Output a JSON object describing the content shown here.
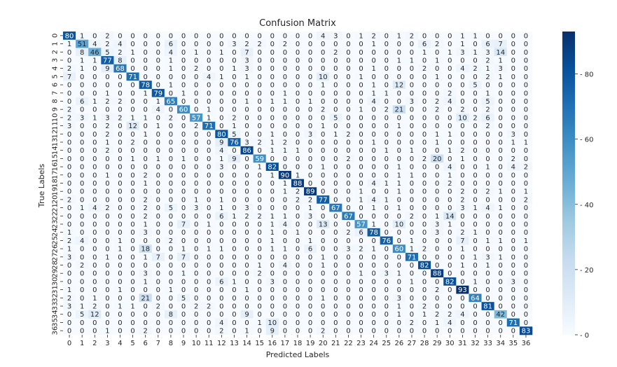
{
  "chart_data": {
    "type": "heatmap",
    "title": "Confusion Matrix",
    "xlabel": "Predicted Labels",
    "ylabel": "True Labels",
    "x_tick_labels": [
      "0",
      "1",
      "2",
      "3",
      "4",
      "5",
      "6",
      "7",
      "8",
      "9",
      "10",
      "11",
      "12",
      "13",
      "14",
      "15",
      "16",
      "17",
      "18",
      "19",
      "20",
      "21",
      "22",
      "23",
      "24",
      "25",
      "26",
      "27",
      "28",
      "29",
      "30",
      "31",
      "32",
      "33",
      "34",
      "35",
      "36"
    ],
    "y_tick_labels": [
      "0",
      "1",
      "2",
      "3",
      "4",
      "5",
      "6",
      "7",
      "8",
      "9",
      "10",
      "11",
      "12",
      "13",
      "14",
      "15",
      "16",
      "17",
      "18",
      "19",
      "20",
      "21",
      "22",
      "23",
      "24",
      "25",
      "26",
      "27",
      "28",
      "29",
      "30",
      "31",
      "32",
      "33",
      "34",
      "35",
      "36"
    ],
    "colorscale": "Blues",
    "vmin": 0,
    "vmax": 93,
    "colorbar_ticks": [
      0,
      20,
      40,
      60,
      80
    ],
    "colors": {
      "low": "#f7fbff",
      "high": "#08306b",
      "text_dark": "#262626",
      "text_light": "#ffffff"
    },
    "matrix": [
      [
        80,
        1,
        0,
        2,
        0,
        0,
        0,
        0,
        0,
        0,
        0,
        0,
        0,
        0,
        0,
        0,
        0,
        0,
        0,
        0,
        4,
        3,
        0,
        1,
        2,
        0,
        1,
        2,
        0,
        0,
        0,
        1,
        1,
        0,
        0,
        0,
        0
      ],
      [
        1,
        51,
        4,
        2,
        4,
        0,
        0,
        0,
        6,
        0,
        0,
        0,
        0,
        3,
        2,
        2,
        0,
        2,
        0,
        0,
        0,
        0,
        0,
        0,
        1,
        0,
        0,
        0,
        6,
        2,
        0,
        1,
        0,
        6,
        7,
        0,
        0
      ],
      [
        0,
        8,
        46,
        5,
        2,
        1,
        0,
        0,
        4,
        0,
        1,
        0,
        1,
        0,
        7,
        0,
        0,
        0,
        0,
        0,
        0,
        2,
        0,
        0,
        0,
        0,
        0,
        0,
        1,
        0,
        1,
        3,
        1,
        3,
        14,
        0,
        0
      ],
      [
        0,
        1,
        1,
        77,
        8,
        0,
        0,
        0,
        1,
        0,
        0,
        0,
        0,
        0,
        3,
        0,
        0,
        0,
        0,
        0,
        0,
        0,
        0,
        0,
        0,
        0,
        1,
        1,
        0,
        1,
        0,
        0,
        0,
        2,
        1,
        0,
        0
      ],
      [
        2,
        1,
        0,
        9,
        68,
        0,
        0,
        0,
        1,
        0,
        2,
        0,
        0,
        1,
        3,
        0,
        0,
        0,
        0,
        0,
        0,
        0,
        0,
        0,
        1,
        0,
        0,
        0,
        2,
        0,
        0,
        4,
        2,
        1,
        3,
        0,
        0
      ],
      [
        7,
        0,
        0,
        0,
        0,
        71,
        0,
        0,
        0,
        0,
        0,
        4,
        1,
        0,
        1,
        0,
        0,
        0,
        0,
        0,
        10,
        0,
        0,
        1,
        0,
        0,
        0,
        0,
        0,
        1,
        0,
        0,
        0,
        2,
        1,
        0,
        0
      ],
      [
        0,
        0,
        0,
        0,
        0,
        0,
        78,
        0,
        1,
        0,
        0,
        0,
        0,
        0,
        0,
        0,
        0,
        0,
        0,
        0,
        1,
        0,
        0,
        0,
        1,
        0,
        12,
        0,
        0,
        0,
        0,
        0,
        5,
        0,
        0,
        0,
        0
      ],
      [
        0,
        0,
        0,
        1,
        0,
        0,
        1,
        79,
        0,
        1,
        0,
        0,
        0,
        0,
        0,
        0,
        0,
        1,
        0,
        0,
        0,
        0,
        0,
        0,
        1,
        1,
        0,
        0,
        0,
        0,
        2,
        0,
        0,
        1,
        0,
        0,
        0
      ],
      [
        0,
        6,
        1,
        2,
        2,
        0,
        0,
        1,
        65,
        0,
        0,
        0,
        0,
        0,
        1,
        0,
        1,
        1,
        0,
        1,
        0,
        0,
        0,
        0,
        4,
        0,
        0,
        3,
        0,
        2,
        4,
        0,
        0,
        5,
        0,
        0,
        0
      ],
      [
        2,
        0,
        0,
        0,
        0,
        0,
        0,
        4,
        0,
        60,
        0,
        1,
        0,
        0,
        0,
        0,
        0,
        0,
        0,
        0,
        2,
        0,
        0,
        1,
        0,
        2,
        21,
        0,
        0,
        2,
        0,
        2,
        0,
        2,
        0,
        0,
        0
      ],
      [
        2,
        3,
        1,
        3,
        2,
        1,
        1,
        0,
        2,
        0,
        57,
        1,
        0,
        2,
        0,
        0,
        0,
        0,
        0,
        0,
        0,
        5,
        0,
        0,
        0,
        0,
        0,
        0,
        0,
        0,
        0,
        10,
        2,
        6,
        0,
        0,
        0
      ],
      [
        3,
        0,
        0,
        2,
        0,
        12,
        0,
        1,
        0,
        0,
        2,
        71,
        0,
        1,
        0,
        0,
        0,
        0,
        0,
        0,
        1,
        0,
        0,
        0,
        0,
        0,
        1,
        0,
        0,
        0,
        0,
        0,
        0,
        2,
        0,
        0,
        0
      ],
      [
        0,
        0,
        0,
        2,
        0,
        0,
        1,
        0,
        0,
        0,
        0,
        0,
        80,
        5,
        0,
        0,
        1,
        0,
        0,
        3,
        0,
        1,
        2,
        0,
        0,
        0,
        0,
        0,
        0,
        1,
        1,
        0,
        0,
        0,
        0,
        3,
        0
      ],
      [
        0,
        0,
        0,
        1,
        0,
        2,
        0,
        0,
        0,
        0,
        0,
        0,
        9,
        76,
        3,
        2,
        1,
        2,
        0,
        0,
        0,
        0,
        0,
        0,
        1,
        0,
        0,
        0,
        0,
        1,
        0,
        0,
        0,
        0,
        0,
        1,
        1
      ],
      [
        0,
        0,
        0,
        2,
        0,
        0,
        0,
        0,
        0,
        0,
        0,
        0,
        4,
        0,
        86,
        0,
        1,
        1,
        1,
        0,
        0,
        0,
        0,
        0,
        0,
        1,
        0,
        1,
        0,
        0,
        1,
        2,
        0,
        0,
        0,
        0,
        0
      ],
      [
        0,
        0,
        0,
        0,
        0,
        1,
        0,
        1,
        0,
        1,
        0,
        0,
        1,
        9,
        0,
        59,
        0,
        0,
        0,
        0,
        0,
        0,
        2,
        0,
        0,
        0,
        0,
        0,
        2,
        20,
        0,
        1,
        0,
        0,
        0,
        2,
        0
      ],
      [
        0,
        0,
        0,
        0,
        0,
        0,
        0,
        0,
        0,
        0,
        0,
        0,
        3,
        0,
        0,
        1,
        82,
        0,
        0,
        0,
        1,
        0,
        0,
        0,
        0,
        0,
        1,
        0,
        0,
        0,
        4,
        0,
        0,
        1,
        0,
        4,
        2
      ],
      [
        0,
        0,
        0,
        1,
        0,
        0,
        2,
        0,
        0,
        0,
        0,
        0,
        0,
        0,
        0,
        0,
        1,
        90,
        1,
        0,
        0,
        0,
        0,
        0,
        0,
        0,
        1,
        1,
        0,
        0,
        1,
        0,
        0,
        0,
        0,
        0,
        0
      ],
      [
        0,
        0,
        0,
        0,
        0,
        0,
        1,
        0,
        0,
        0,
        0,
        0,
        0,
        0,
        0,
        0,
        0,
        1,
        88,
        0,
        0,
        0,
        0,
        0,
        4,
        1,
        1,
        0,
        0,
        0,
        2,
        0,
        0,
        0,
        0,
        0,
        0
      ],
      [
        0,
        0,
        0,
        0,
        0,
        0,
        0,
        0,
        0,
        0,
        0,
        0,
        0,
        0,
        0,
        0,
        0,
        1,
        2,
        89,
        0,
        0,
        0,
        1,
        0,
        0,
        1,
        0,
        0,
        0,
        0,
        2,
        0,
        2,
        1,
        0,
        1
      ],
      [
        2,
        0,
        0,
        0,
        0,
        0,
        2,
        0,
        0,
        0,
        1,
        0,
        1,
        0,
        0,
        0,
        0,
        0,
        2,
        2,
        77,
        0,
        0,
        1,
        4,
        1,
        0,
        0,
        0,
        0,
        0,
        2,
        0,
        0,
        0,
        0,
        2
      ],
      [
        0,
        1,
        4,
        2,
        0,
        0,
        2,
        0,
        5,
        0,
        3,
        0,
        1,
        0,
        3,
        0,
        0,
        0,
        0,
        1,
        0,
        67,
        0,
        0,
        1,
        0,
        1,
        0,
        0,
        0,
        0,
        3,
        1,
        4,
        1,
        0,
        0
      ],
      [
        0,
        0,
        0,
        0,
        0,
        0,
        2,
        0,
        0,
        0,
        0,
        0,
        6,
        1,
        2,
        2,
        1,
        1,
        0,
        3,
        0,
        0,
        67,
        0,
        0,
        0,
        0,
        2,
        0,
        1,
        14,
        0,
        0,
        0,
        0,
        0,
        0
      ],
      [
        0,
        0,
        0,
        0,
        0,
        0,
        1,
        0,
        0,
        7,
        0,
        1,
        0,
        0,
        0,
        0,
        1,
        4,
        0,
        0,
        13,
        0,
        0,
        57,
        1,
        0,
        10,
        0,
        0,
        3,
        1,
        0,
        0,
        0,
        0,
        0,
        0
      ],
      [
        1,
        0,
        0,
        0,
        0,
        0,
        3,
        0,
        0,
        0,
        0,
        0,
        0,
        0,
        0,
        0,
        1,
        0,
        1,
        0,
        0,
        0,
        2,
        6,
        78,
        0,
        0,
        0,
        0,
        3,
        0,
        2,
        1,
        0,
        0,
        0,
        0
      ],
      [
        2,
        4,
        0,
        0,
        1,
        0,
        0,
        0,
        2,
        0,
        0,
        0,
        0,
        0,
        0,
        0,
        1,
        0,
        0,
        1,
        0,
        0,
        0,
        0,
        0,
        76,
        0,
        1,
        0,
        0,
        0,
        7,
        0,
        1,
        1,
        0,
        1
      ],
      [
        1,
        0,
        0,
        0,
        1,
        0,
        18,
        0,
        0,
        1,
        0,
        1,
        1,
        0,
        0,
        0,
        1,
        1,
        0,
        6,
        0,
        0,
        3,
        2,
        1,
        0,
        60,
        1,
        2,
        0,
        0,
        1,
        0,
        0,
        0,
        0,
        0
      ],
      [
        3,
        0,
        0,
        1,
        0,
        0,
        1,
        7,
        0,
        7,
        0,
        0,
        0,
        0,
        0,
        0,
        0,
        0,
        0,
        0,
        1,
        0,
        0,
        0,
        0,
        0,
        0,
        71,
        0,
        0,
        0,
        0,
        1,
        3,
        1,
        0,
        0
      ],
      [
        0,
        2,
        0,
        0,
        0,
        0,
        0,
        0,
        0,
        0,
        0,
        0,
        0,
        0,
        0,
        1,
        0,
        4,
        0,
        0,
        1,
        0,
        0,
        0,
        0,
        0,
        0,
        0,
        82,
        0,
        0,
        1,
        0,
        1,
        0,
        0,
        0
      ],
      [
        0,
        0,
        0,
        0,
        0,
        0,
        3,
        0,
        0,
        1,
        0,
        0,
        0,
        0,
        0,
        2,
        0,
        0,
        0,
        0,
        0,
        0,
        0,
        1,
        0,
        3,
        1,
        0,
        0,
        88,
        0,
        0,
        0,
        0,
        0,
        0,
        0
      ],
      [
        0,
        0,
        0,
        0,
        0,
        0,
        1,
        0,
        0,
        0,
        0,
        0,
        6,
        1,
        0,
        0,
        3,
        0,
        0,
        0,
        0,
        0,
        0,
        0,
        0,
        0,
        0,
        1,
        0,
        0,
        82,
        0,
        1,
        0,
        0,
        3,
        0
      ],
      [
        1,
        0,
        0,
        0,
        1,
        0,
        0,
        0,
        1,
        0,
        0,
        0,
        0,
        0,
        1,
        0,
        0,
        0,
        0,
        0,
        0,
        0,
        0,
        0,
        0,
        0,
        0,
        0,
        0,
        2,
        0,
        93,
        0,
        0,
        0,
        0,
        0
      ],
      [
        2,
        0,
        1,
        0,
        0,
        0,
        21,
        0,
        0,
        5,
        0,
        0,
        0,
        0,
        0,
        0,
        0,
        0,
        0,
        0,
        1,
        0,
        0,
        0,
        0,
        0,
        3,
        0,
        0,
        0,
        0,
        0,
        64,
        0,
        0,
        0,
        0
      ],
      [
        3,
        1,
        2,
        0,
        1,
        1,
        0,
        2,
        0,
        0,
        2,
        2,
        0,
        0,
        0,
        0,
        0,
        0,
        0,
        0,
        0,
        0,
        0,
        0,
        0,
        0,
        1,
        0,
        2,
        0,
        0,
        0,
        0,
        81,
        0,
        0,
        0
      ],
      [
        0,
        5,
        12,
        0,
        0,
        0,
        0,
        0,
        8,
        0,
        0,
        0,
        0,
        0,
        9,
        0,
        0,
        0,
        0,
        0,
        0,
        0,
        0,
        0,
        0,
        0,
        1,
        0,
        1,
        2,
        2,
        4,
        0,
        0,
        42,
        0,
        0
      ],
      [
        0,
        0,
        0,
        0,
        0,
        0,
        0,
        0,
        0,
        0,
        0,
        0,
        4,
        0,
        0,
        1,
        10,
        0,
        0,
        0,
        0,
        0,
        0,
        0,
        0,
        0,
        0,
        2,
        0,
        1,
        4,
        0,
        0,
        0,
        0,
        71,
        0
      ],
      [
        0,
        0,
        0,
        1,
        0,
        0,
        2,
        0,
        0,
        0,
        0,
        0,
        2,
        0,
        1,
        0,
        9,
        0,
        0,
        0,
        2,
        0,
        0,
        0,
        0,
        0,
        0,
        0,
        0,
        0,
        0,
        0,
        0,
        0,
        0,
        0,
        83
      ]
    ]
  }
}
